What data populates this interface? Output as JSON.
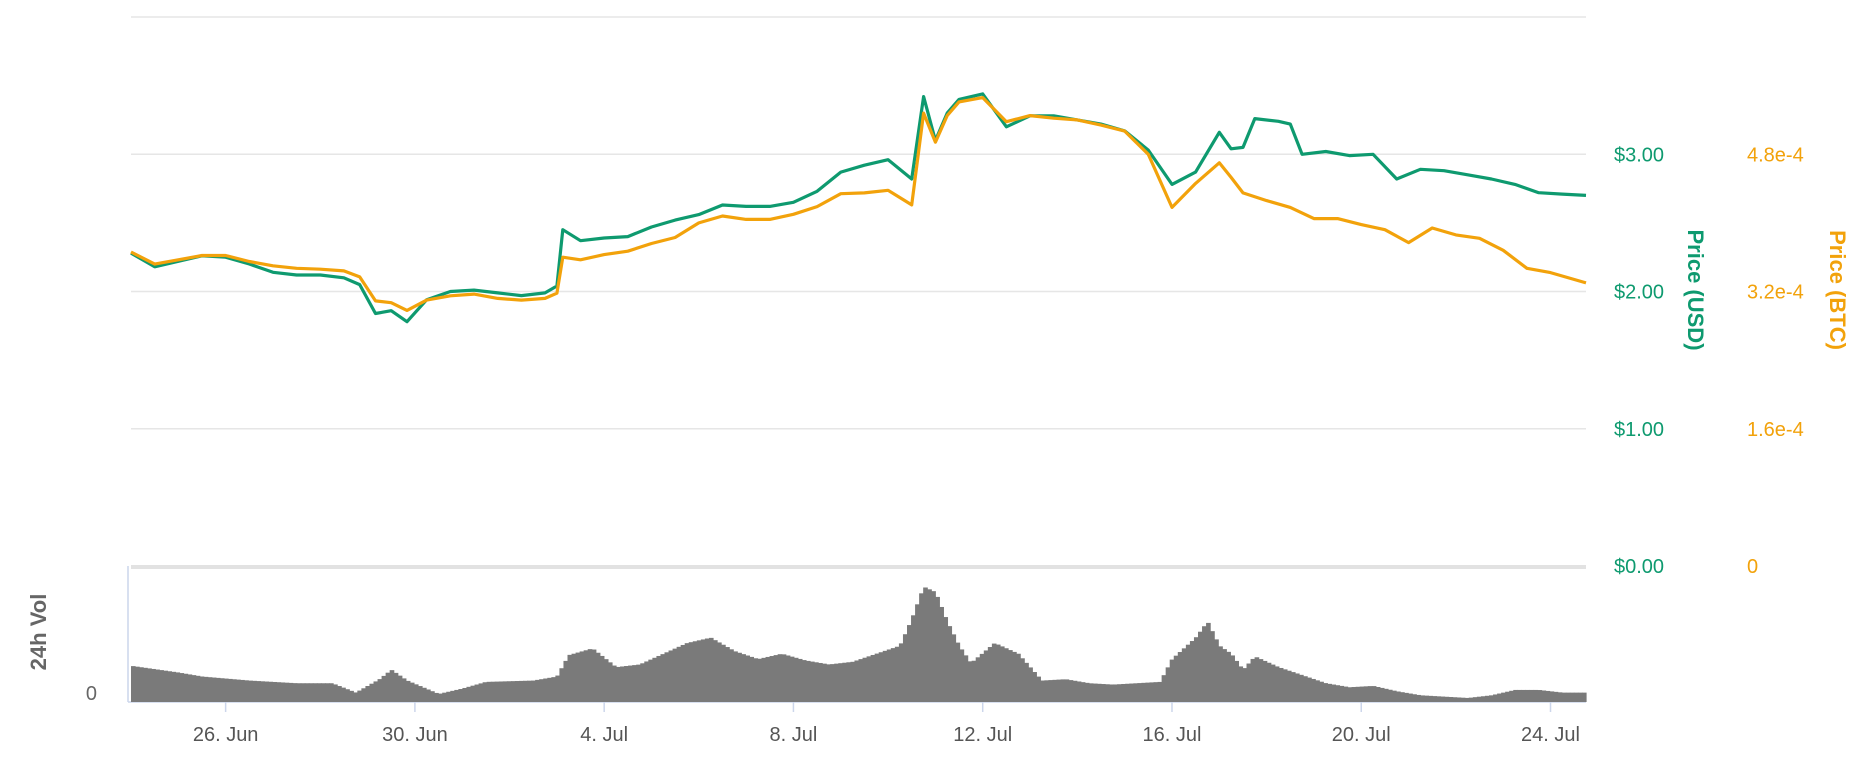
{
  "chart_data": {
    "type": "line",
    "x_range": [
      "2018-06-24",
      "2018-07-24T18:00"
    ],
    "x_ticks": [
      {
        "date": "2018-06-26",
        "label": "26. Jun"
      },
      {
        "date": "2018-06-30",
        "label": "30. Jun"
      },
      {
        "date": "2018-07-04",
        "label": "4. Jul"
      },
      {
        "date": "2018-07-08",
        "label": "8. Jul"
      },
      {
        "date": "2018-07-12",
        "label": "12. Jul"
      },
      {
        "date": "2018-07-16",
        "label": "16. Jul"
      },
      {
        "date": "2018-07-20",
        "label": "20. Jul"
      },
      {
        "date": "2018-07-24",
        "label": "24. Jul"
      }
    ],
    "y_usd": {
      "label": "Price (USD)",
      "range": [
        0,
        4.0
      ],
      "ticks": [
        {
          "value": 0,
          "label": "$0.00"
        },
        {
          "value": 1,
          "label": "$1.00"
        },
        {
          "value": 2,
          "label": "$2.00"
        },
        {
          "value": 3,
          "label": "$3.00"
        }
      ],
      "color": "#0e9a6f"
    },
    "y_btc": {
      "label": "Price (BTC)",
      "range": [
        0,
        0.00064
      ],
      "ticks": [
        {
          "value": 0,
          "label": "0"
        },
        {
          "value": 0.00016,
          "label": "1.6e-4"
        },
        {
          "value": 0.00032,
          "label": "3.2e-4"
        },
        {
          "value": 0.00048,
          "label": "4.8e-4"
        }
      ],
      "color": "#f2a20b"
    },
    "volume_panel": {
      "label": "24h Vol",
      "zero_label": "0",
      "color": "#7a7a7a"
    },
    "grid": true,
    "series": [
      {
        "name": "Price (USD)",
        "axis": "usd",
        "color": "#0e9a6f",
        "points": [
          [
            "2018-06-24T00:00",
            2.28
          ],
          [
            "2018-06-24T12:00",
            2.18
          ],
          [
            "2018-06-25T00:00",
            2.22
          ],
          [
            "2018-06-25T12:00",
            2.26
          ],
          [
            "2018-06-26T00:00",
            2.25
          ],
          [
            "2018-06-26T12:00",
            2.2
          ],
          [
            "2018-06-27T00:00",
            2.14
          ],
          [
            "2018-06-27T12:00",
            2.12
          ],
          [
            "2018-06-28T00:00",
            2.12
          ],
          [
            "2018-06-28T12:00",
            2.1
          ],
          [
            "2018-06-28T20:00",
            2.05
          ],
          [
            "2018-06-29T04:00",
            1.84
          ],
          [
            "2018-06-29T12:00",
            1.86
          ],
          [
            "2018-06-29T20:00",
            1.78
          ],
          [
            "2018-06-30T06:00",
            1.94
          ],
          [
            "2018-06-30T18:00",
            2.0
          ],
          [
            "2018-07-01T06:00",
            2.01
          ],
          [
            "2018-07-01T18:00",
            1.99
          ],
          [
            "2018-07-02T06:00",
            1.97
          ],
          [
            "2018-07-02T18:00",
            1.99
          ],
          [
            "2018-07-03T00:00",
            2.04
          ],
          [
            "2018-07-03T03:00",
            2.45
          ],
          [
            "2018-07-03T12:00",
            2.37
          ],
          [
            "2018-07-04T00:00",
            2.39
          ],
          [
            "2018-07-04T12:00",
            2.4
          ],
          [
            "2018-07-05T00:00",
            2.47
          ],
          [
            "2018-07-05T12:00",
            2.52
          ],
          [
            "2018-07-06T00:00",
            2.56
          ],
          [
            "2018-07-06T12:00",
            2.63
          ],
          [
            "2018-07-07T00:00",
            2.62
          ],
          [
            "2018-07-07T12:00",
            2.62
          ],
          [
            "2018-07-08T00:00",
            2.65
          ],
          [
            "2018-07-08T12:00",
            2.73
          ],
          [
            "2018-07-09T00:00",
            2.87
          ],
          [
            "2018-07-09T12:00",
            2.92
          ],
          [
            "2018-07-10T00:00",
            2.96
          ],
          [
            "2018-07-10T12:00",
            2.82
          ],
          [
            "2018-07-10T18:00",
            3.42
          ],
          [
            "2018-07-11T00:00",
            3.1
          ],
          [
            "2018-07-11T06:00",
            3.3
          ],
          [
            "2018-07-11T12:00",
            3.4
          ],
          [
            "2018-07-12T00:00",
            3.44
          ],
          [
            "2018-07-12T12:00",
            3.2
          ],
          [
            "2018-07-13T00:00",
            3.28
          ],
          [
            "2018-07-13T12:00",
            3.28
          ],
          [
            "2018-07-14T00:00",
            3.25
          ],
          [
            "2018-07-14T12:00",
            3.22
          ],
          [
            "2018-07-15T00:00",
            3.17
          ],
          [
            "2018-07-15T12:00",
            3.03
          ],
          [
            "2018-07-16T00:00",
            2.78
          ],
          [
            "2018-07-16T12:00",
            2.87
          ],
          [
            "2018-07-17T00:00",
            3.16
          ],
          [
            "2018-07-17T06:00",
            3.04
          ],
          [
            "2018-07-17T12:00",
            3.05
          ],
          [
            "2018-07-17T18:00",
            3.26
          ],
          [
            "2018-07-18T06:00",
            3.24
          ],
          [
            "2018-07-18T12:00",
            3.22
          ],
          [
            "2018-07-18T18:00",
            3.0
          ],
          [
            "2018-07-19T06:00",
            3.02
          ],
          [
            "2018-07-19T18:00",
            2.99
          ],
          [
            "2018-07-20T06:00",
            3.0
          ],
          [
            "2018-07-20T18:00",
            2.82
          ],
          [
            "2018-07-21T06:00",
            2.89
          ],
          [
            "2018-07-21T18:00",
            2.88
          ],
          [
            "2018-07-22T06:00",
            2.85
          ],
          [
            "2018-07-22T18:00",
            2.82
          ],
          [
            "2018-07-23T06:00",
            2.78
          ],
          [
            "2018-07-23T18:00",
            2.72
          ],
          [
            "2018-07-24T06:00",
            2.71
          ],
          [
            "2018-07-24T18:00",
            2.7
          ]
        ]
      },
      {
        "name": "Price (BTC)",
        "axis": "btc",
        "color": "#f2a20b",
        "points": [
          [
            "2018-06-24T00:00",
            0.000366
          ],
          [
            "2018-06-24T12:00",
            0.000352
          ],
          [
            "2018-06-25T00:00",
            0.000357
          ],
          [
            "2018-06-25T12:00",
            0.000362
          ],
          [
            "2018-06-26T00:00",
            0.000362
          ],
          [
            "2018-06-26T12:00",
            0.000355
          ],
          [
            "2018-06-27T00:00",
            0.00035
          ],
          [
            "2018-06-27T12:00",
            0.000347
          ],
          [
            "2018-06-28T00:00",
            0.000346
          ],
          [
            "2018-06-28T12:00",
            0.000344
          ],
          [
            "2018-06-28T20:00",
            0.000337
          ],
          [
            "2018-06-29T04:00",
            0.000309
          ],
          [
            "2018-06-29T12:00",
            0.000307
          ],
          [
            "2018-06-29T20:00",
            0.000298
          ],
          [
            "2018-06-30T06:00",
            0.00031
          ],
          [
            "2018-06-30T18:00",
            0.000315
          ],
          [
            "2018-07-01T06:00",
            0.000317
          ],
          [
            "2018-07-01T18:00",
            0.000312
          ],
          [
            "2018-07-02T06:00",
            0.00031
          ],
          [
            "2018-07-02T18:00",
            0.000312
          ],
          [
            "2018-07-03T00:00",
            0.000318
          ],
          [
            "2018-07-03T03:00",
            0.00036
          ],
          [
            "2018-07-03T12:00",
            0.000357
          ],
          [
            "2018-07-04T00:00",
            0.000363
          ],
          [
            "2018-07-04T12:00",
            0.000367
          ],
          [
            "2018-07-05T00:00",
            0.000376
          ],
          [
            "2018-07-05T12:00",
            0.000383
          ],
          [
            "2018-07-06T00:00",
            0.0004
          ],
          [
            "2018-07-06T12:00",
            0.000408
          ],
          [
            "2018-07-07T00:00",
            0.000404
          ],
          [
            "2018-07-07T12:00",
            0.000404
          ],
          [
            "2018-07-08T00:00",
            0.00041
          ],
          [
            "2018-07-08T12:00",
            0.000419
          ],
          [
            "2018-07-09T00:00",
            0.000434
          ],
          [
            "2018-07-09T12:00",
            0.000435
          ],
          [
            "2018-07-10T00:00",
            0.000438
          ],
          [
            "2018-07-10T12:00",
            0.000421
          ],
          [
            "2018-07-10T18:00",
            0.000528
          ],
          [
            "2018-07-11T00:00",
            0.000494
          ],
          [
            "2018-07-11T06:00",
            0.000525
          ],
          [
            "2018-07-11T12:00",
            0.000541
          ],
          [
            "2018-07-12T00:00",
            0.000546
          ],
          [
            "2018-07-12T12:00",
            0.000518
          ],
          [
            "2018-07-13T00:00",
            0.000525
          ],
          [
            "2018-07-13T12:00",
            0.000522
          ],
          [
            "2018-07-14T00:00",
            0.00052
          ],
          [
            "2018-07-14T12:00",
            0.000514
          ],
          [
            "2018-07-15T00:00",
            0.000507
          ],
          [
            "2018-07-15T12:00",
            0.00048
          ],
          [
            "2018-07-16T00:00",
            0.000418
          ],
          [
            "2018-07-16T12:00",
            0.000446
          ],
          [
            "2018-07-17T00:00",
            0.00047
          ],
          [
            "2018-07-17T06:00",
            0.000453
          ],
          [
            "2018-07-17T12:00",
            0.000435
          ],
          [
            "2018-07-18T00:00",
            0.000426
          ],
          [
            "2018-07-18T12:00",
            0.000418
          ],
          [
            "2018-07-19T00:00",
            0.000405
          ],
          [
            "2018-07-19T12:00",
            0.000405
          ],
          [
            "2018-07-20T00:00",
            0.000398
          ],
          [
            "2018-07-20T12:00",
            0.000392
          ],
          [
            "2018-07-21T00:00",
            0.000377
          ],
          [
            "2018-07-21T12:00",
            0.000394
          ],
          [
            "2018-07-22T00:00",
            0.000386
          ],
          [
            "2018-07-22T12:00",
            0.000382
          ],
          [
            "2018-07-23T00:00",
            0.000368
          ],
          [
            "2018-07-23T12:00",
            0.000347
          ],
          [
            "2018-07-24T00:00",
            0.000342
          ],
          [
            "2018-07-24T18:00",
            0.00033
          ]
        ]
      }
    ],
    "volume": [
      [
        "2018-06-24T00:00",
        0.27
      ],
      [
        "2018-06-25T00:00",
        0.22
      ],
      [
        "2018-06-25T12:00",
        0.19
      ],
      [
        "2018-06-26T12:00",
        0.16
      ],
      [
        "2018-06-27T12:00",
        0.14
      ],
      [
        "2018-06-28T06:00",
        0.14
      ],
      [
        "2018-06-28T18:00",
        0.07
      ],
      [
        "2018-06-29T06:00",
        0.17
      ],
      [
        "2018-06-29T12:00",
        0.24
      ],
      [
        "2018-06-29T20:00",
        0.16
      ],
      [
        "2018-06-30T12:00",
        0.06
      ],
      [
        "2018-07-01T00:00",
        0.1
      ],
      [
        "2018-07-01T12:00",
        0.15
      ],
      [
        "2018-07-02T12:00",
        0.16
      ],
      [
        "2018-07-03T00:00",
        0.19
      ],
      [
        "2018-07-03T06:00",
        0.35
      ],
      [
        "2018-07-03T18:00",
        0.4
      ],
      [
        "2018-07-04T06:00",
        0.26
      ],
      [
        "2018-07-04T18:00",
        0.28
      ],
      [
        "2018-07-05T06:00",
        0.36
      ],
      [
        "2018-07-05T18:00",
        0.44
      ],
      [
        "2018-07-06T06:00",
        0.48
      ],
      [
        "2018-07-06T18:00",
        0.38
      ],
      [
        "2018-07-07T06:00",
        0.32
      ],
      [
        "2018-07-07T18:00",
        0.36
      ],
      [
        "2018-07-08T06:00",
        0.31
      ],
      [
        "2018-07-08T18:00",
        0.28
      ],
      [
        "2018-07-09T06:00",
        0.3
      ],
      [
        "2018-07-09T18:00",
        0.36
      ],
      [
        "2018-07-10T06:00",
        0.42
      ],
      [
        "2018-07-10T12:00",
        0.62
      ],
      [
        "2018-07-10T18:00",
        0.86
      ],
      [
        "2018-07-11T00:00",
        0.82
      ],
      [
        "2018-07-11T06:00",
        0.6
      ],
      [
        "2018-07-11T12:00",
        0.42
      ],
      [
        "2018-07-11T18:00",
        0.29
      ],
      [
        "2018-07-12T06:00",
        0.44
      ],
      [
        "2018-07-12T18:00",
        0.36
      ],
      [
        "2018-07-13T06:00",
        0.16
      ],
      [
        "2018-07-13T18:00",
        0.17
      ],
      [
        "2018-07-14T06:00",
        0.14
      ],
      [
        "2018-07-14T18:00",
        0.13
      ],
      [
        "2018-07-15T06:00",
        0.14
      ],
      [
        "2018-07-15T18:00",
        0.15
      ],
      [
        "2018-07-16T00:00",
        0.32
      ],
      [
        "2018-07-16T12:00",
        0.48
      ],
      [
        "2018-07-16T18:00",
        0.6
      ],
      [
        "2018-07-17T00:00",
        0.42
      ],
      [
        "2018-07-17T06:00",
        0.36
      ],
      [
        "2018-07-17T12:00",
        0.24
      ],
      [
        "2018-07-17T18:00",
        0.34
      ],
      [
        "2018-07-18T06:00",
        0.26
      ],
      [
        "2018-07-18T18:00",
        0.2
      ],
      [
        "2018-07-19T06:00",
        0.14
      ],
      [
        "2018-07-19T18:00",
        0.11
      ],
      [
        "2018-07-20T06:00",
        0.12
      ],
      [
        "2018-07-20T18:00",
        0.08
      ],
      [
        "2018-07-21T06:00",
        0.05
      ],
      [
        "2018-07-21T18:00",
        0.04
      ],
      [
        "2018-07-22T06:00",
        0.03
      ],
      [
        "2018-07-22T18:00",
        0.05
      ],
      [
        "2018-07-23T06:00",
        0.09
      ],
      [
        "2018-07-23T18:00",
        0.09
      ],
      [
        "2018-07-24T06:00",
        0.07
      ],
      [
        "2018-07-24T18:00",
        0.07
      ]
    ]
  }
}
